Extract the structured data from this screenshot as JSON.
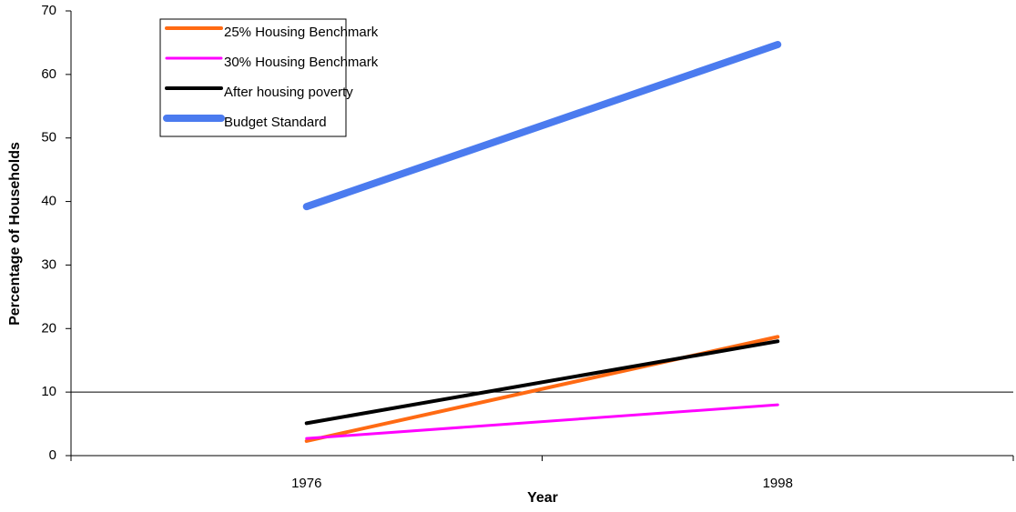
{
  "chart_data": {
    "type": "line",
    "categories": [
      "1976",
      "1998"
    ],
    "series": [
      {
        "name": "25% Housing Benchmark",
        "color": "#ff6a13",
        "values": [
          2.3,
          18.7
        ]
      },
      {
        "name": "30%  Housing Benchmark",
        "color": "#ff00ff",
        "values": [
          2.7,
          8.0
        ]
      },
      {
        "name": "After housing poverty",
        "color": "#000000",
        "values": [
          5.1,
          18.0
        ]
      },
      {
        "name": "Budget Standard",
        "color": "#4b7bef",
        "values": [
          39.2,
          64.7
        ]
      }
    ],
    "x_label": "Year",
    "y_label": "Percentage of Households",
    "ylim": [
      0,
      70
    ],
    "yticks": [
      0,
      10,
      20,
      30,
      40,
      50,
      60,
      70
    ],
    "reference_line": 10,
    "legend": "upper left"
  }
}
